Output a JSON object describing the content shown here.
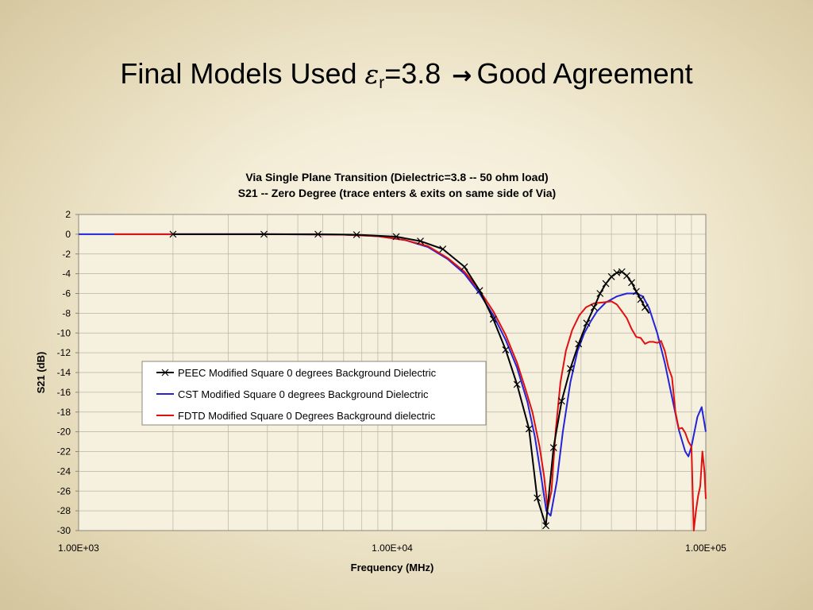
{
  "slide": {
    "title_prefix": "Final Models Used ",
    "title_symbol": "ε",
    "title_subscript": "r",
    "title_value": "=3.8",
    "title_arrow": "→",
    "title_suffix": "Good Agreement"
  },
  "colors": {
    "peec": "#000000",
    "cst": "#2323d8",
    "fdtd": "#e01010",
    "gridline": "#b9b3a3",
    "plot_background": "#f6f1df"
  },
  "chart_data": {
    "type": "line",
    "title": "Via Single Plane Transition  (Dielectric=3.8 -- 50 ohm load)",
    "subtitle": "S21 -- Zero Degree (trace enters & exits on same side of Via)",
    "xlabel": "Frequency (MHz)",
    "ylabel": "S21 (dB)",
    "x_scale": "log",
    "xlim": [
      1000,
      100000
    ],
    "x_ticks": [
      1000,
      10000,
      100000
    ],
    "x_tick_labels": [
      "1.00E+03",
      "1.00E+04",
      "1.00E+05"
    ],
    "ylim": [
      -30,
      2
    ],
    "y_ticks": [
      2,
      0,
      -2,
      -4,
      -6,
      -8,
      -10,
      -12,
      -14,
      -16,
      -18,
      -20,
      -22,
      -24,
      -26,
      -28,
      -30
    ],
    "grid": true,
    "legend_position": "center-left",
    "series": [
      {
        "name": "PEEC Modified Square 0 degrees Background Dielectric",
        "color": "#000000",
        "marker": "x",
        "x": [
          2000,
          3900,
          5800,
          7700,
          10300,
          12300,
          14500,
          17000,
          19000,
          21000,
          23000,
          25000,
          27300,
          29000,
          30900,
          32700,
          34700,
          37000,
          39300,
          41700,
          44000,
          46000,
          48000,
          50000,
          52000,
          54000,
          56000,
          58000,
          60000,
          62000,
          64000,
          66000
        ],
        "y": [
          0,
          0,
          0,
          -0.05,
          -0.25,
          -0.7,
          -1.5,
          -3.3,
          -5.7,
          -8.6,
          -11.7,
          -15.2,
          -19.7,
          -26.7,
          -29.5,
          -21.6,
          -16.9,
          -13.6,
          -11.1,
          -9.0,
          -7.4,
          -6.0,
          -5.0,
          -4.3,
          -3.9,
          -3.8,
          -4.2,
          -4.9,
          -5.8,
          -6.6,
          -7.4,
          -8.0
        ],
        "marker_x": [
          2000,
          3900,
          5800,
          7700,
          10300,
          12300,
          14500,
          17000,
          19000,
          21000,
          23000,
          25000,
          27300,
          29000,
          30900,
          32700,
          34700,
          37000,
          39300,
          41700,
          44000,
          46000,
          48000,
          50000,
          52000,
          54000,
          56000,
          58000,
          60000,
          62000,
          64000
        ]
      },
      {
        "name": "CST Modified Square 0 degrees Background Dielectric",
        "color": "#2323d8",
        "x": [
          1000,
          2000,
          4000,
          7000,
          9000,
          11000,
          13000,
          15000,
          17000,
          19000,
          21000,
          23000,
          25000,
          27000,
          28500,
          30000,
          31000,
          32000,
          33500,
          35000,
          37000,
          39000,
          41000,
          43000,
          45000,
          48000,
          52000,
          56000,
          60000,
          63000,
          66000,
          70000,
          74000,
          78000,
          82000,
          86000,
          88000,
          90000,
          94000,
          97000,
          100000
        ],
        "y": [
          0,
          0,
          0,
          -0.05,
          -0.2,
          -0.6,
          -1.3,
          -2.5,
          -4.0,
          -6.0,
          -8.2,
          -10.7,
          -13.5,
          -17.0,
          -20.5,
          -25.0,
          -28.0,
          -28.5,
          -25.0,
          -20.0,
          -15.0,
          -11.8,
          -10.0,
          -8.8,
          -7.8,
          -6.9,
          -6.3,
          -6.0,
          -6.0,
          -6.3,
          -7.5,
          -10.0,
          -13.0,
          -16.5,
          -19.8,
          -22.0,
          -22.5,
          -21.5,
          -18.5,
          -17.5,
          -20.0
        ]
      },
      {
        "name": "FDTD Modified Square 0 Degrees Background dielectric",
        "color": "#e01010",
        "x": [
          1300,
          2000,
          4000,
          7000,
          9000,
          11000,
          13000,
          15000,
          17000,
          19000,
          21000,
          23000,
          25000,
          26500,
          28000,
          29500,
          30500,
          31300,
          32200,
          33200,
          34400,
          35800,
          37500,
          39500,
          41500,
          44000,
          47000,
          50000,
          52000,
          54000,
          56000,
          58000,
          60000,
          62000,
          64000,
          66000,
          68000,
          70000,
          72000,
          74000,
          76000,
          78000,
          80000,
          82000,
          84000,
          86000,
          88000,
          90000,
          91500,
          93000,
          94500,
          96000,
          97500,
          99000,
          100000
        ],
        "y": [
          0,
          0,
          0,
          -0.05,
          -0.2,
          -0.6,
          -1.2,
          -2.4,
          -3.8,
          -5.7,
          -7.8,
          -10.2,
          -13.0,
          -15.5,
          -18.0,
          -21.5,
          -24.5,
          -27.8,
          -26.0,
          -20.0,
          -15.0,
          -11.8,
          -9.7,
          -8.2,
          -7.4,
          -7.0,
          -6.9,
          -6.8,
          -7.1,
          -7.8,
          -8.5,
          -9.6,
          -10.4,
          -10.5,
          -11.1,
          -10.9,
          -10.9,
          -11.0,
          -10.8,
          -11.8,
          -13.5,
          -14.5,
          -18.0,
          -19.7,
          -19.6,
          -20.1,
          -21.0,
          -21.5,
          -30.0,
          -28.0,
          -26.5,
          -25.5,
          -22.0,
          -24.0,
          -26.8
        ]
      }
    ]
  }
}
